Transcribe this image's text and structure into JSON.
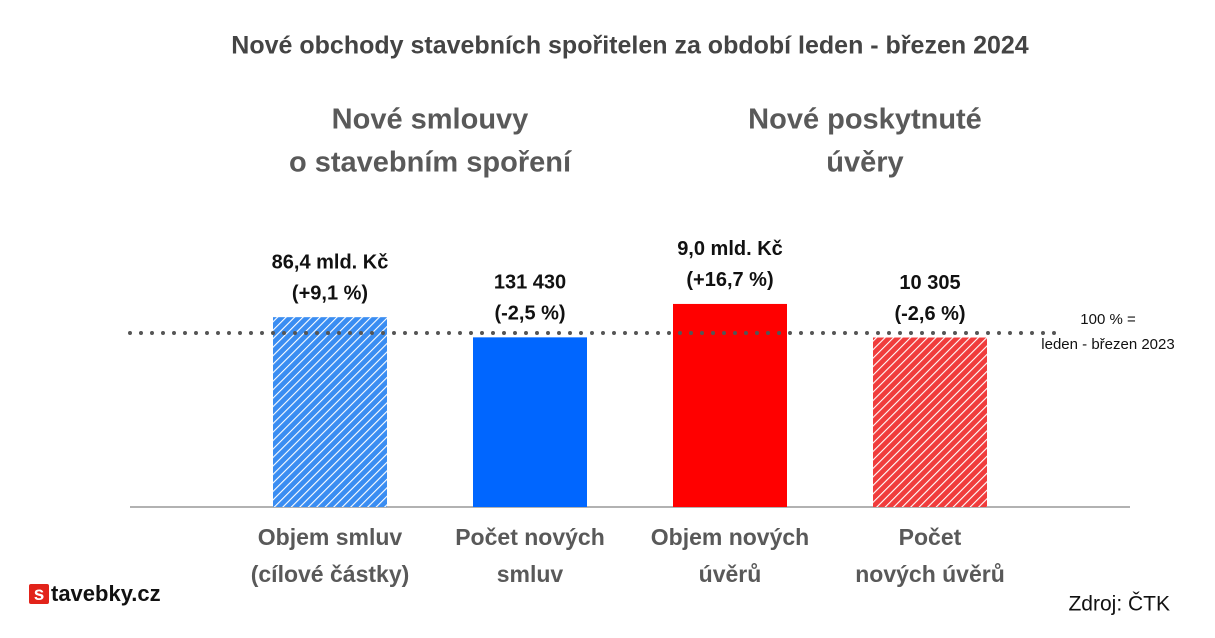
{
  "chart_data": {
    "type": "bar",
    "title": "Nové obchody stavebních spořitelen za období leden - březen 2024",
    "groups": [
      {
        "lines": [
          "Nové smlouvy",
          "o stavebním spoření"
        ]
      },
      {
        "lines": [
          "Nové poskytnuté",
          "úvěry"
        ]
      }
    ],
    "categories": [
      [
        "Objem smluv",
        "(cílové částky)"
      ],
      [
        "Počet  nových",
        "smluv"
      ],
      [
        "Objem nových",
        "úvěrů"
      ],
      [
        "Počet",
        "nových úvěrů"
      ]
    ],
    "values": [
      109.1,
      97.5,
      116.7,
      97.4
    ],
    "amount_labels": [
      "86,4 mld. Kč",
      "131 430",
      "9,0 mld. Kč",
      "10 305"
    ],
    "change_labels": [
      "(+9,1 %)",
      "(-2,5 %)",
      "(+16,7 %)",
      "(-2,6 %)"
    ],
    "colors": [
      "#3a8df2",
      "#0066ff",
      "#ff0000",
      "#f03c3c"
    ],
    "fills": [
      "hatched",
      "solid",
      "solid",
      "hatched"
    ],
    "ylim": [
      0,
      125
    ],
    "reference": {
      "value": 100,
      "lines": [
        "100 % =",
        "leden - březen 2023"
      ]
    },
    "logo": {
      "mark": "s",
      "text": "tavebky.cz"
    },
    "source": "Zdroj: ČTK"
  }
}
